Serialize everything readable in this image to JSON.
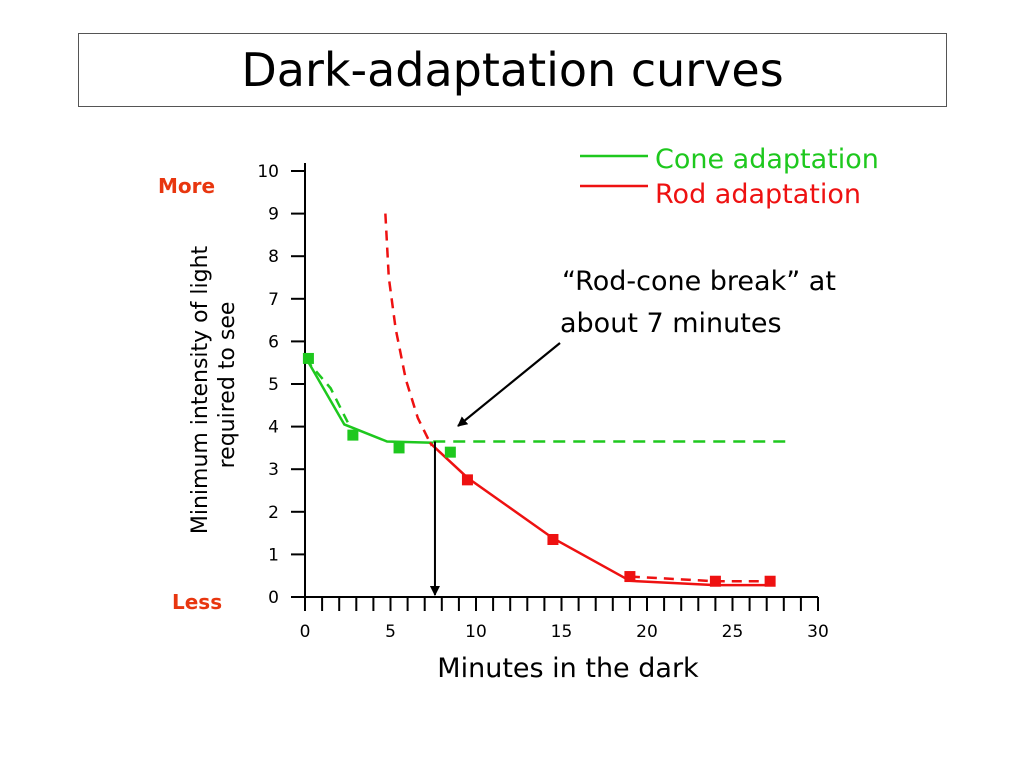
{
  "slide": {
    "title": "Dark-adaptation curves"
  },
  "chart_data": {
    "type": "line",
    "xlabel": "Minutes in the dark",
    "ylabel_line1": "Minimum intensity of light",
    "ylabel_line2": "required to see",
    "xlim": [
      0,
      30
    ],
    "ylim": [
      0,
      10
    ],
    "x_ticks": [
      "0",
      "5",
      "10",
      "15",
      "20",
      "25",
      "30"
    ],
    "y_ticks": [
      "0",
      "1",
      "2",
      "3",
      "4",
      "5",
      "6",
      "7",
      "8",
      "9",
      "10"
    ],
    "y_top_label": "More",
    "y_bottom_label": "Less",
    "colors": {
      "cone": "#1ec81e",
      "rod": "#ee1111",
      "annotation": "#000000",
      "side_labels": "#e8360f"
    },
    "series": [
      {
        "name": "Cone adaptation",
        "color": "#1ec81e",
        "points": [
          [
            0.2,
            5.6
          ],
          [
            2.8,
            3.8
          ],
          [
            5.5,
            3.5
          ],
          [
            8.5,
            3.4
          ]
        ],
        "fitted": [
          [
            0,
            5.65
          ],
          [
            2.3,
            4.05
          ],
          [
            4.8,
            3.65
          ],
          [
            7.5,
            3.62
          ]
        ],
        "asymptote_dashed": {
          "y": 3.65,
          "x_start": 7.5,
          "x_end": 28.5
        },
        "dashed_descent": [
          [
            0,
            5.6
          ],
          [
            1.5,
            4.9
          ],
          [
            2.5,
            4.1
          ]
        ]
      },
      {
        "name": "Rod adaptation",
        "color": "#ee1111",
        "points": [
          [
            9.5,
            2.75
          ],
          [
            14.5,
            1.35
          ],
          [
            19,
            0.48
          ],
          [
            24,
            0.37
          ],
          [
            27.2,
            0.37
          ]
        ],
        "fitted": [
          [
            7.3,
            3.62
          ],
          [
            9.5,
            2.8
          ],
          [
            14.5,
            1.38
          ],
          [
            19,
            0.38
          ],
          [
            24,
            0.28
          ],
          [
            27.2,
            0.28
          ]
        ],
        "dashed_extension": [
          [
            4.7,
            9.0
          ],
          [
            4.9,
            7.5
          ],
          [
            5.3,
            6.3
          ],
          [
            5.9,
            5.1
          ],
          [
            6.6,
            4.2
          ],
          [
            7.4,
            3.55
          ]
        ],
        "dashed_tail": [
          [
            19,
            0.48
          ],
          [
            24,
            0.37
          ],
          [
            27.2,
            0.37
          ]
        ]
      }
    ],
    "annotation": {
      "line1": "“Rod-cone break” at",
      "line2": "about 7 minutes",
      "break_x": 7.6
    }
  }
}
